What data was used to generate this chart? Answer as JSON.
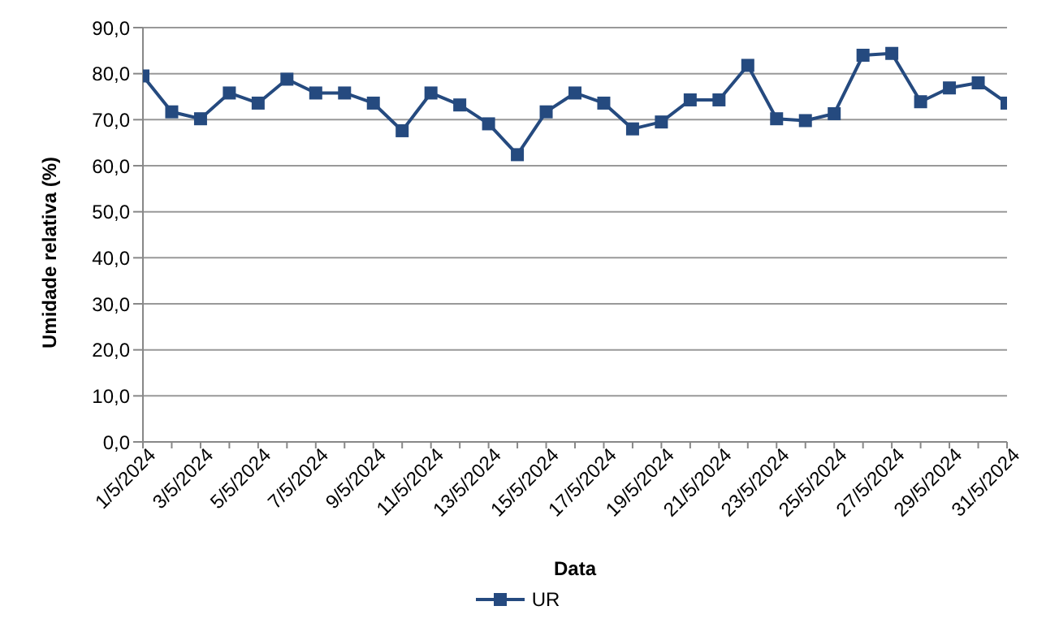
{
  "chart_data": {
    "type": "line",
    "xlabel": "Data",
    "ylabel": "Umidade relativa (%)",
    "categories": [
      "1/5/2024",
      null,
      "3/5/2024",
      null,
      "5/5/2024",
      null,
      "7/5/2024",
      null,
      "9/5/2024",
      null,
      "11/5/2024",
      null,
      "13/5/2024",
      null,
      "15/5/2024",
      null,
      "17/5/2024",
      null,
      "19/5/2024",
      null,
      "21/5/2024",
      null,
      "23/5/2024",
      null,
      "25/5/2024",
      null,
      "27/5/2024",
      null,
      "29/5/2024",
      null,
      "31/5/2024"
    ],
    "series": [
      {
        "name": "UR",
        "color": "#254a7f",
        "values": [
          79.5,
          71.7,
          70.2,
          75.8,
          73.6,
          78.8,
          75.8,
          75.8,
          73.6,
          67.6,
          75.8,
          73.2,
          69.1,
          62.4,
          71.7,
          75.8,
          73.6,
          68.0,
          69.5,
          74.3,
          74.3,
          81.8,
          70.2,
          69.8,
          71.3,
          84.0,
          84.4,
          73.9,
          76.9,
          78.0,
          73.6
        ]
      }
    ],
    "ylim": [
      0,
      90
    ],
    "yticks": [
      {
        "value": 0,
        "label": "0,0"
      },
      {
        "value": 10,
        "label": "10,0"
      },
      {
        "value": 20,
        "label": "20,0"
      },
      {
        "value": 30,
        "label": "30,0"
      },
      {
        "value": 40,
        "label": "40,0"
      },
      {
        "value": 50,
        "label": "50,0"
      },
      {
        "value": 60,
        "label": "60,0"
      },
      {
        "value": 70,
        "label": "70,0"
      },
      {
        "value": 80,
        "label": "80,0"
      },
      {
        "value": 90,
        "label": "90,0"
      }
    ],
    "grid": "y",
    "legend": "bottom",
    "marker": "square",
    "line_style": "solid"
  }
}
